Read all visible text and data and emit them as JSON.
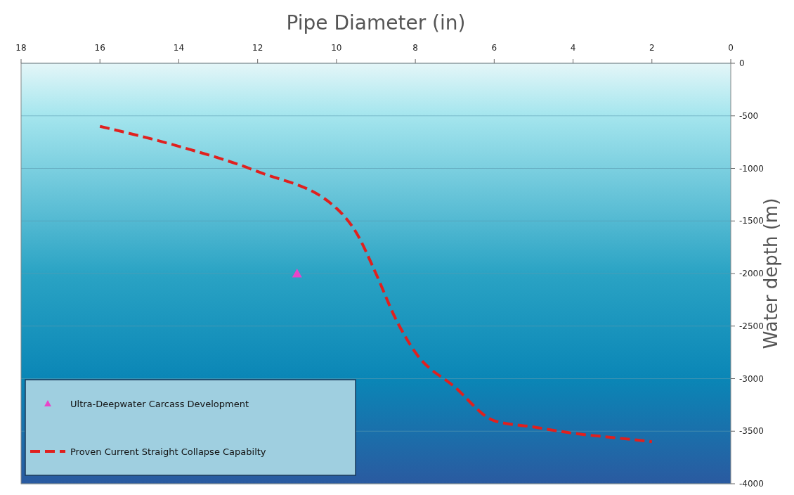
{
  "chart_data": {
    "type": "line",
    "xlabel": "Pipe Diameter (in)",
    "ylabel": "Water depth (m)",
    "xlim": [
      18,
      0
    ],
    "xticks": [
      18,
      16,
      14,
      12,
      10,
      8,
      6,
      4,
      2,
      0
    ],
    "ylim": [
      -4000,
      0
    ],
    "yticks": [
      0,
      -500,
      -1000,
      -1500,
      -2000,
      -2500,
      -3000,
      -3500,
      -4000
    ],
    "grid": "y",
    "legend": "bottom left",
    "series": [
      {
        "name": "Ultra-Deepwater Carcass Development",
        "type": "scatter",
        "marker": "triangle",
        "color": "#e845c8",
        "x": [
          11
        ],
        "values": [
          -2000
        ]
      },
      {
        "name": "Proven Current Straight Collapse Capabilty",
        "line_style": "dashed",
        "marker": "none",
        "color": "#e0201e",
        "x": [
          16,
          14,
          12,
          10,
          9.5,
          9,
          8.5,
          8,
          7,
          6,
          5,
          4,
          3,
          2
        ],
        "values": [
          -600,
          -790,
          -1030,
          -1380,
          -1610,
          -2000,
          -2430,
          -2750,
          -3080,
          -3400,
          -3460,
          -3520,
          -3560,
          -3600
        ]
      }
    ]
  }
}
